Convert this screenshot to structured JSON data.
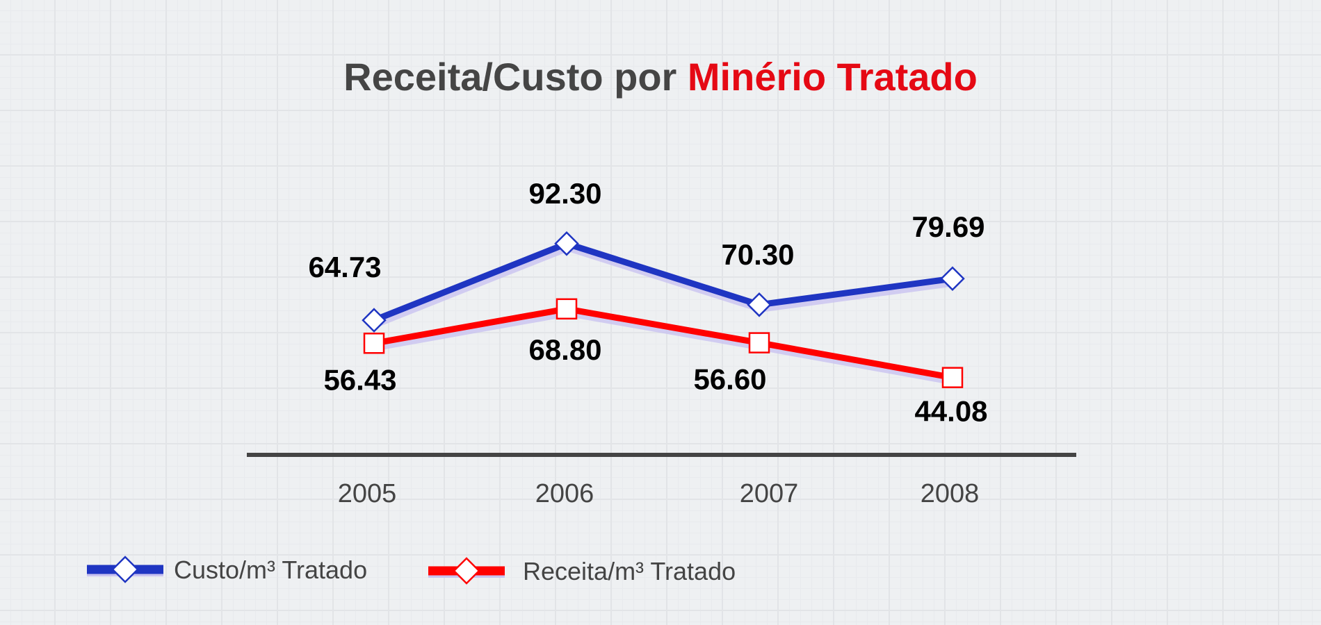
{
  "chart_data": {
    "type": "line",
    "title_part1": "Receita/Custo por ",
    "title_part2": "Minério Tratado",
    "categories": [
      "2005",
      "2006",
      "2007",
      "2008"
    ],
    "series": [
      {
        "name": "Custo/m³ Tratado",
        "values": [
          64.73,
          92.3,
          70.3,
          79.69
        ],
        "labels": [
          "64.73",
          "92.30",
          "70.30",
          "79.69"
        ],
        "color": "#1f35c2",
        "marker": "diamond",
        "label_position": "above"
      },
      {
        "name": "Receita/m³ Tratado",
        "values": [
          56.43,
          68.8,
          56.6,
          44.08
        ],
        "labels": [
          "56.43",
          "68.80",
          "56.60",
          "44.08"
        ],
        "color": "#ff0000",
        "marker": "square",
        "label_position": "below"
      }
    ],
    "ylim": [
      0,
      150
    ],
    "xlabel": "",
    "ylabel": "",
    "grid": false,
    "legend_position": "bottom-left"
  },
  "colors": {
    "title_dark": "#454545",
    "title_accent": "#e50914",
    "axis": "#444444"
  }
}
